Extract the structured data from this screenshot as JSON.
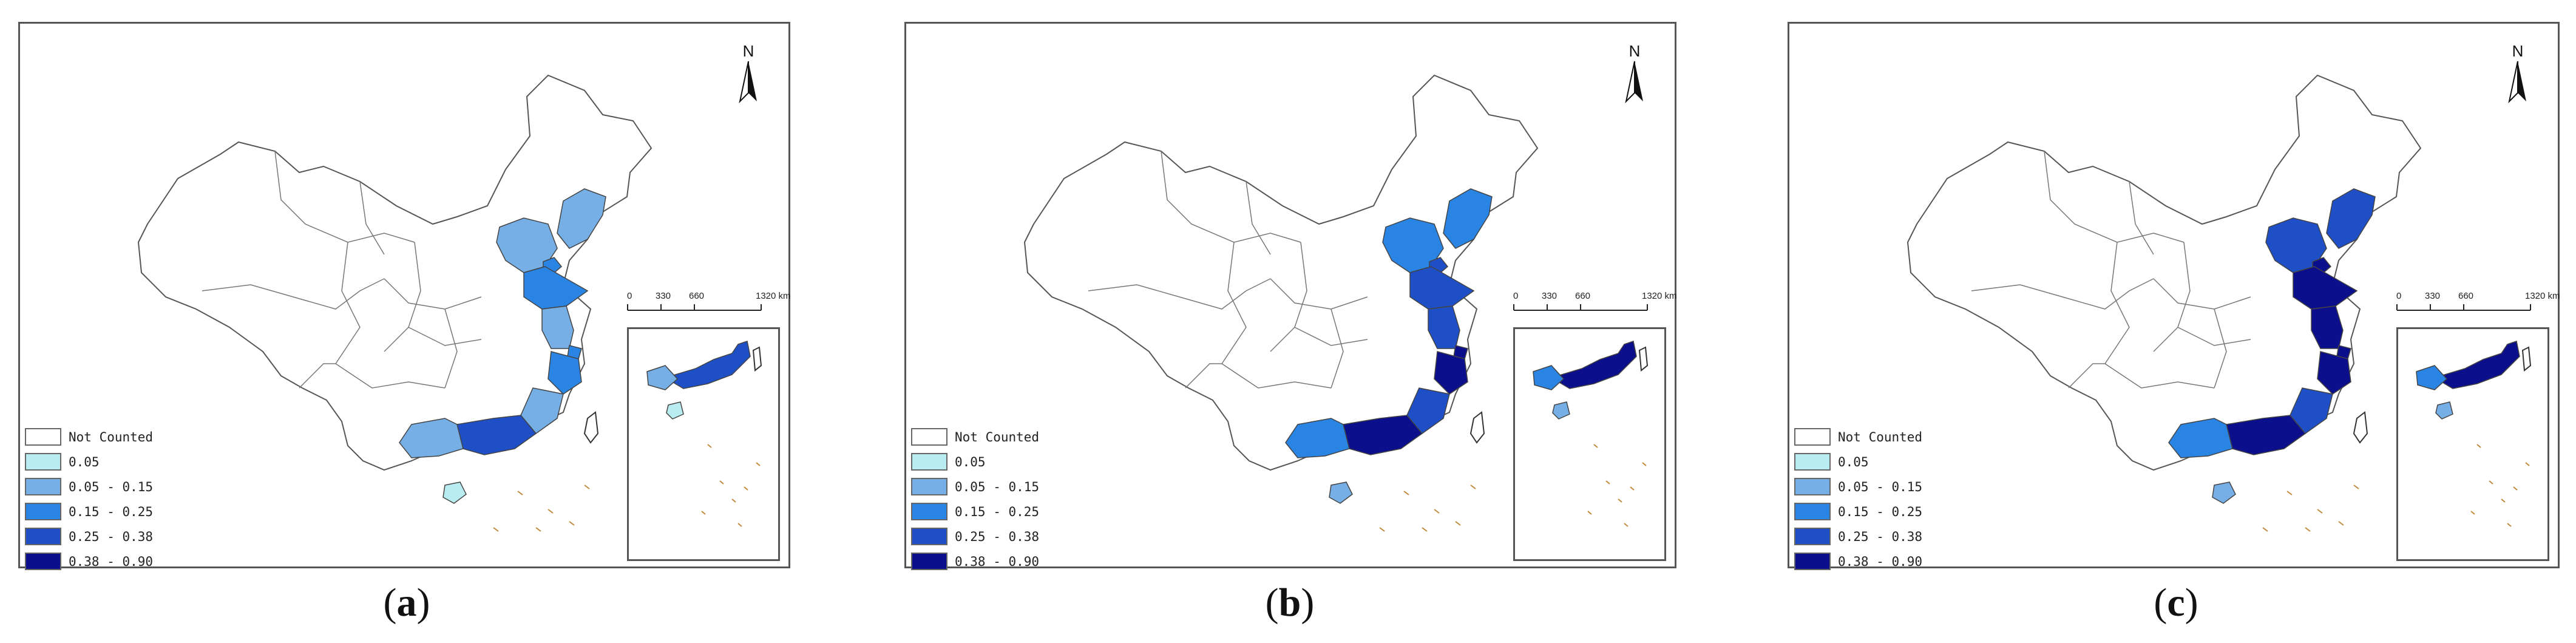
{
  "panels": [
    {
      "caption": "a",
      "fills": {
        "liaoning": "#76aee6",
        "hebei": "#76aee6",
        "tianjin": "#2a84e3",
        "shandong": "#2a84e3",
        "jiangsu": "#76aee6",
        "shanghai": "#2a84e3",
        "zhejiang": "#2a84e3",
        "fujian": "#76aee6",
        "guangdong": "#1f4fc6",
        "guangxi": "#76aee6",
        "hainan": "#b8ecf0"
      }
    },
    {
      "caption": "b",
      "fills": {
        "liaoning": "#2a84e3",
        "hebei": "#2a84e3",
        "tianjin": "#1f4fc6",
        "shandong": "#1f4fc6",
        "jiangsu": "#1f4fc6",
        "shanghai": "#0b0f8c",
        "zhejiang": "#0b0f8c",
        "fujian": "#1f4fc6",
        "guangdong": "#0b0f8c",
        "guangxi": "#2a84e3",
        "hainan": "#76aee6"
      }
    },
    {
      "caption": "c",
      "fills": {
        "liaoning": "#1f4fc6",
        "hebei": "#1f4fc6",
        "tianjin": "#0b0f8c",
        "shandong": "#0b0f8c",
        "jiangsu": "#0b0f8c",
        "shanghai": "#0b0f8c",
        "zhejiang": "#0b0f8c",
        "fujian": "#1f4fc6",
        "guangdong": "#0b0f8c",
        "guangxi": "#2a84e3",
        "hainan": "#76aee6"
      }
    }
  ],
  "legend": [
    {
      "label": "Not Counted",
      "color": "#ffffff"
    },
    {
      "label": "0.05",
      "color": "#b8ecf0"
    },
    {
      "label": "0.05 - 0.15",
      "color": "#76aee6"
    },
    {
      "label": "0.15 - 0.25",
      "color": "#2a84e3"
    },
    {
      "label": "0.25 - 0.38",
      "color": "#1f4fc6"
    },
    {
      "label": "0.38 - 0.90",
      "color": "#0b0f8c"
    }
  ],
  "north_label": "N",
  "scale": {
    "ticks": [
      "0",
      "330",
      "660",
      "1320 km"
    ]
  }
}
